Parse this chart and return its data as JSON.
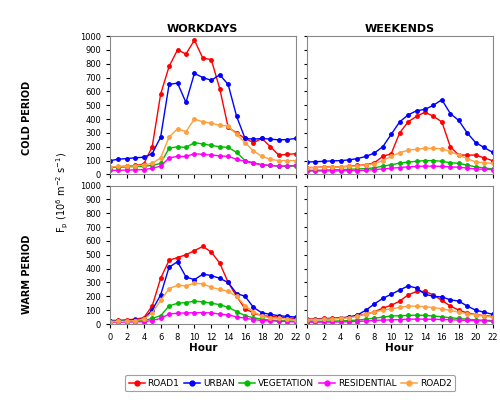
{
  "hours": [
    0,
    1,
    2,
    3,
    4,
    5,
    6,
    7,
    8,
    9,
    10,
    11,
    12,
    13,
    14,
    15,
    16,
    17,
    18,
    19,
    20,
    21,
    22
  ],
  "cold_workday": {
    "ROAD1": [
      50,
      55,
      60,
      65,
      75,
      200,
      580,
      780,
      900,
      870,
      970,
      840,
      830,
      620,
      340,
      300,
      260,
      230,
      260,
      200,
      140,
      145,
      150
    ],
    "URBAN": [
      100,
      110,
      115,
      120,
      125,
      150,
      270,
      650,
      660,
      520,
      730,
      700,
      680,
      720,
      650,
      420,
      260,
      255,
      260,
      255,
      250,
      252,
      260
    ],
    "VEGETATION": [
      50,
      52,
      55,
      57,
      60,
      65,
      80,
      190,
      200,
      195,
      230,
      220,
      210,
      200,
      195,
      160,
      100,
      85,
      70,
      65,
      60,
      60,
      60
    ],
    "RESIDENTIAL": [
      30,
      30,
      32,
      33,
      35,
      45,
      60,
      120,
      130,
      130,
      150,
      145,
      140,
      135,
      130,
      110,
      95,
      80,
      70,
      65,
      60,
      62,
      65
    ],
    "ROAD2": [
      55,
      58,
      60,
      63,
      68,
      80,
      120,
      270,
      330,
      310,
      400,
      380,
      370,
      355,
      350,
      290,
      230,
      170,
      130,
      110,
      100,
      100,
      100
    ]
  },
  "cold_weekend": {
    "ROAD1": [
      50,
      50,
      55,
      55,
      55,
      60,
      65,
      70,
      85,
      130,
      150,
      300,
      380,
      420,
      450,
      420,
      380,
      200,
      140,
      140,
      140,
      120,
      100
    ],
    "URBAN": [
      90,
      92,
      95,
      98,
      100,
      105,
      115,
      130,
      155,
      200,
      290,
      380,
      430,
      460,
      470,
      500,
      540,
      440,
      390,
      300,
      230,
      195,
      160
    ],
    "VEGETATION": [
      30,
      30,
      32,
      33,
      35,
      37,
      40,
      42,
      48,
      60,
      70,
      82,
      90,
      95,
      100,
      100,
      95,
      85,
      80,
      68,
      55,
      47,
      40
    ],
    "RESIDENTIAL": [
      25,
      25,
      25,
      26,
      26,
      27,
      28,
      30,
      35,
      40,
      45,
      50,
      55,
      58,
      60,
      60,
      58,
      55,
      52,
      46,
      40,
      37,
      35
    ],
    "ROAD2": [
      50,
      50,
      52,
      54,
      55,
      58,
      62,
      68,
      78,
      100,
      130,
      158,
      175,
      182,
      190,
      188,
      185,
      165,
      140,
      115,
      90,
      85,
      80
    ]
  },
  "warm_workday": {
    "ROAD1": [
      25,
      27,
      30,
      35,
      45,
      130,
      330,
      460,
      480,
      500,
      530,
      560,
      520,
      440,
      300,
      200,
      110,
      80,
      60,
      55,
      50,
      45,
      40
    ],
    "URBAN": [
      20,
      22,
      25,
      28,
      35,
      100,
      210,
      410,
      450,
      340,
      320,
      360,
      350,
      330,
      300,
      220,
      200,
      120,
      80,
      70,
      60,
      55,
      50
    ],
    "VEGETATION": [
      18,
      19,
      20,
      22,
      25,
      40,
      60,
      130,
      150,
      155,
      165,
      160,
      150,
      140,
      120,
      90,
      60,
      45,
      35,
      28,
      25,
      22,
      20
    ],
    "RESIDENTIAL": [
      13,
      13,
      14,
      15,
      16,
      25,
      40,
      72,
      78,
      80,
      82,
      82,
      80,
      72,
      65,
      52,
      42,
      32,
      25,
      22,
      20,
      17,
      15
    ],
    "ROAD2": [
      18,
      19,
      20,
      25,
      35,
      80,
      170,
      255,
      280,
      275,
      295,
      290,
      265,
      250,
      235,
      200,
      130,
      90,
      55,
      45,
      40,
      35,
      30
    ]
  },
  "warm_weekend": {
    "ROAD1": [
      35,
      37,
      40,
      42,
      45,
      50,
      60,
      72,
      88,
      115,
      135,
      165,
      210,
      235,
      235,
      210,
      170,
      130,
      100,
      80,
      68,
      60,
      55
    ],
    "URBAN": [
      30,
      32,
      35,
      38,
      42,
      50,
      65,
      100,
      145,
      185,
      215,
      245,
      275,
      260,
      215,
      200,
      195,
      175,
      165,
      130,
      100,
      85,
      70
    ],
    "VEGETATION": [
      18,
      19,
      20,
      21,
      22,
      25,
      28,
      35,
      42,
      50,
      58,
      60,
      62,
      64,
      62,
      58,
      52,
      45,
      40,
      34,
      30,
      27,
      25
    ],
    "RESIDENTIAL": [
      13,
      13,
      14,
      14,
      15,
      16,
      18,
      22,
      26,
      28,
      30,
      32,
      35,
      35,
      35,
      34,
      33,
      31,
      28,
      26,
      24,
      22,
      20
    ],
    "ROAD2": [
      30,
      32,
      34,
      37,
      40,
      46,
      55,
      72,
      88,
      100,
      110,
      120,
      130,
      128,
      125,
      118,
      110,
      98,
      85,
      74,
      65,
      57,
      50
    ]
  },
  "colors": {
    "ROAD1": "#FF0000",
    "URBAN": "#0000FF",
    "VEGETATION": "#00BB00",
    "RESIDENTIAL": "#FF00FF",
    "ROAD2": "#FFA040"
  },
  "ylim": [
    0,
    1000
  ],
  "yticks": [
    0,
    100,
    200,
    300,
    400,
    500,
    600,
    700,
    800,
    900,
    1000
  ],
  "xticks": [
    0,
    2,
    4,
    6,
    8,
    10,
    12,
    14,
    16,
    18,
    20,
    22
  ],
  "col_titles": [
    "WORKDAYS",
    "WEEKENDS"
  ],
  "row_labels": [
    "COLD PERIOD",
    "WARM PERIOD"
  ],
  "xlabel": "Hour",
  "series_order": [
    "ROAD1",
    "URBAN",
    "VEGETATION",
    "RESIDENTIAL",
    "ROAD2"
  ]
}
